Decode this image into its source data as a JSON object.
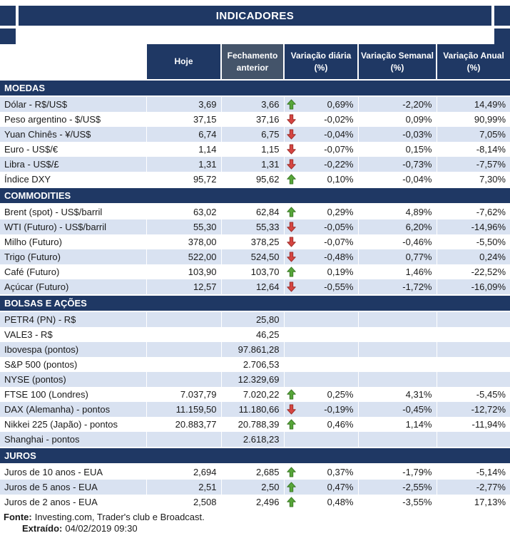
{
  "title": "INDICADORES",
  "chart_data": {
    "type": "table",
    "title": "INDICADORES",
    "columns": [
      "Hoje",
      "Fechamento anterior",
      "Variação diária (%)",
      "Variação Semanal (%)",
      "Variação Anual (%)"
    ],
    "sections": [
      {
        "id": "moedas",
        "name": "MOEDAS",
        "rows": [
          {
            "label": "Dólar - R$/US$",
            "hoje": "3,69",
            "fechamento": "3,66",
            "arrow": "up",
            "diaria": "0,69%",
            "semanal": "-2,20%",
            "anual": "14,49%"
          },
          {
            "label": "Peso argentino - $/US$",
            "hoje": "37,15",
            "fechamento": "37,16",
            "arrow": "down",
            "diaria": "-0,02%",
            "semanal": "0,09%",
            "anual": "90,99%"
          },
          {
            "label": "Yuan Chinês - ¥/US$",
            "hoje": "6,74",
            "fechamento": "6,75",
            "arrow": "down",
            "diaria": "-0,04%",
            "semanal": "-0,03%",
            "anual": "7,05%"
          },
          {
            "label": "Euro - US$/€",
            "hoje": "1,14",
            "fechamento": "1,15",
            "arrow": "down",
            "diaria": "-0,07%",
            "semanal": "0,15%",
            "anual": "-8,14%"
          },
          {
            "label": "Libra - US$/£",
            "hoje": "1,31",
            "fechamento": "1,31",
            "arrow": "down",
            "diaria": "-0,22%",
            "semanal": "-0,73%",
            "anual": "-7,57%"
          },
          {
            "label": "Índice DXY",
            "hoje": "95,72",
            "fechamento": "95,62",
            "arrow": "up",
            "diaria": "0,10%",
            "semanal": "-0,04%",
            "anual": "7,30%"
          }
        ]
      },
      {
        "id": "commodities",
        "name": "COMMODITIES",
        "rows": [
          {
            "label": "Brent (spot) - US$/barril",
            "hoje": "63,02",
            "fechamento": "62,84",
            "arrow": "up",
            "diaria": "0,29%",
            "semanal": "4,89%",
            "anual": "-7,62%"
          },
          {
            "label": "WTI (Futuro) - US$/barril",
            "hoje": "55,30",
            "fechamento": "55,33",
            "arrow": "down",
            "diaria": "-0,05%",
            "semanal": "6,20%",
            "anual": "-14,96%"
          },
          {
            "label": "Milho (Futuro)",
            "hoje": "378,00",
            "fechamento": "378,25",
            "arrow": "down",
            "diaria": "-0,07%",
            "semanal": "-0,46%",
            "anual": "-5,50%"
          },
          {
            "label": "Trigo (Futuro)",
            "hoje": "522,00",
            "fechamento": "524,50",
            "arrow": "down",
            "diaria": "-0,48%",
            "semanal": "0,77%",
            "anual": "0,24%"
          },
          {
            "label": "Café (Futuro)",
            "hoje": "103,90",
            "fechamento": "103,70",
            "arrow": "up",
            "diaria": "0,19%",
            "semanal": "1,46%",
            "anual": "-22,52%"
          },
          {
            "label": "Açúcar (Futuro)",
            "hoje": "12,57",
            "fechamento": "12,64",
            "arrow": "down",
            "diaria": "-0,55%",
            "semanal": "-1,72%",
            "anual": "-16,09%"
          }
        ]
      },
      {
        "id": "bolsas-e-acoes",
        "name": "BOLSAS E AÇÕES",
        "rows": [
          {
            "label": "PETR4 (PN) - R$",
            "hoje": "",
            "fechamento": "25,80",
            "arrow": "",
            "diaria": "",
            "semanal": "",
            "anual": ""
          },
          {
            "label": "VALE3 - R$",
            "hoje": "",
            "fechamento": "46,25",
            "arrow": "",
            "diaria": "",
            "semanal": "",
            "anual": ""
          },
          {
            "label": "Ibovespa (pontos)",
            "hoje": "",
            "fechamento": "97.861,28",
            "arrow": "",
            "diaria": "",
            "semanal": "",
            "anual": ""
          },
          {
            "label": "S&P 500 (pontos)",
            "hoje": "",
            "fechamento": "2.706,53",
            "arrow": "",
            "diaria": "",
            "semanal": "",
            "anual": ""
          },
          {
            "label": "NYSE (pontos)",
            "hoje": "",
            "fechamento": "12.329,69",
            "arrow": "",
            "diaria": "",
            "semanal": "",
            "anual": ""
          },
          {
            "label": "FTSE 100 (Londres)",
            "hoje": "7.037,79",
            "fechamento": "7.020,22",
            "arrow": "up",
            "diaria": "0,25%",
            "semanal": "4,31%",
            "anual": "-5,45%"
          },
          {
            "label": "DAX (Alemanha) - pontos",
            "hoje": "11.159,50",
            "fechamento": "11.180,66",
            "arrow": "down",
            "diaria": "-0,19%",
            "semanal": "-0,45%",
            "anual": "-12,72%"
          },
          {
            "label": "Nikkei 225 (Japão) - pontos",
            "hoje": "20.883,77",
            "fechamento": "20.788,39",
            "arrow": "up",
            "diaria": "0,46%",
            "semanal": "1,14%",
            "anual": "-11,94%"
          },
          {
            "label": "Shanghai - pontos",
            "hoje": "",
            "fechamento": "2.618,23",
            "arrow": "",
            "diaria": "",
            "semanal": "",
            "anual": ""
          }
        ]
      },
      {
        "id": "juros",
        "name": "JUROS",
        "rows": [
          {
            "label": "Juros de 10 anos - EUA",
            "hoje": "2,694",
            "fechamento": "2,685",
            "arrow": "up",
            "diaria": "0,37%",
            "semanal": "-1,79%",
            "anual": "-5,14%"
          },
          {
            "label": "Juros de 5 anos - EUA",
            "hoje": "2,51",
            "fechamento": "2,50",
            "arrow": "up",
            "diaria": "0,47%",
            "semanal": "-2,55%",
            "anual": "-2,77%"
          },
          {
            "label": "Juros de 2 anos - EUA",
            "hoje": "2,508",
            "fechamento": "2,496",
            "arrow": "up",
            "diaria": "0,48%",
            "semanal": "-3,55%",
            "anual": "17,13%"
          }
        ]
      }
    ]
  },
  "footer": {
    "fonte": {
      "label": "Fonte:",
      "text": "Investing.com, Trader's club e Broadcast."
    },
    "extraido": {
      "label": "Extraído:",
      "text": "04/02/2019 09:30"
    }
  },
  "colors": {
    "navy": "#1F3864",
    "header_secondary": "#44546A",
    "row_shaded": "#D9E2F1",
    "row_plain": "#FFFFFF",
    "header_text": "#FFFFFF",
    "text": "#1A1A1A",
    "arrow_up": "#57A639",
    "arrow_up_border": "#3B7A27",
    "arrow_down": "#D64541",
    "arrow_down_border": "#9E2F2B"
  }
}
